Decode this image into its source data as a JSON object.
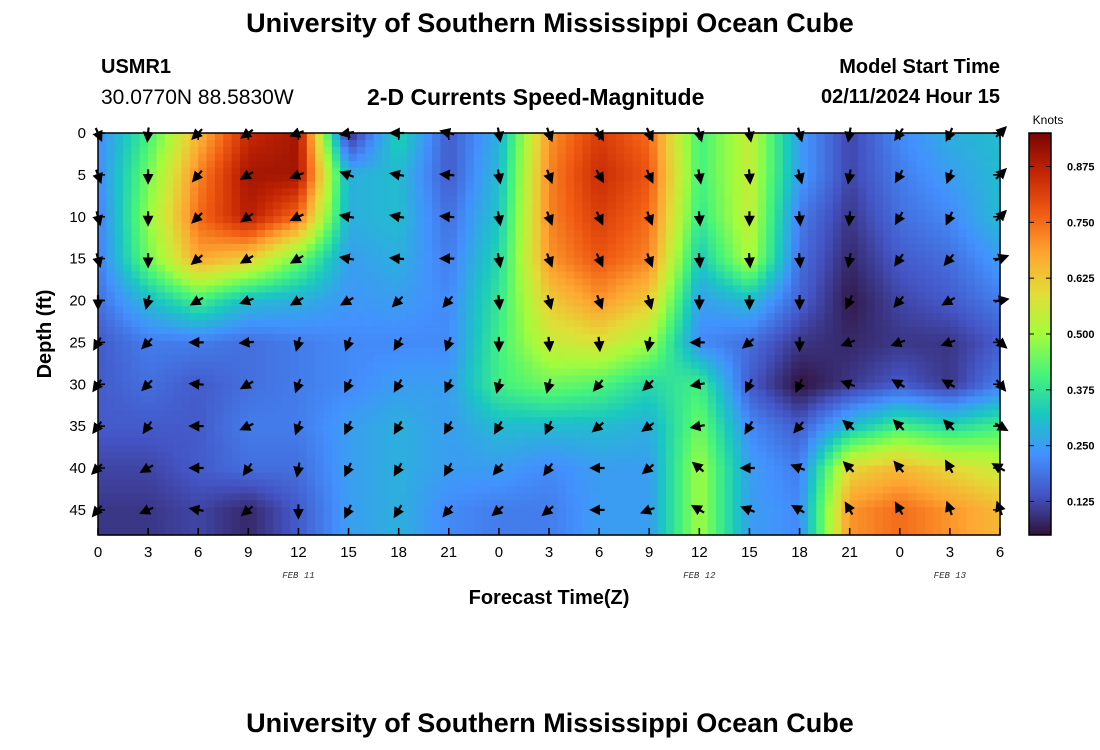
{
  "header": {
    "title": "University of Southern Mississippi Ocean Cube",
    "station_id": "USMR1",
    "coords": "30.0770N  88.5830W",
    "subtitle": "2-D Currents Speed-Magnitude",
    "model_start_label": "Model Start Time",
    "model_start_value": "02/11/2024 Hour 15"
  },
  "footer": {
    "title": "University of Southern Mississippi Ocean Cube"
  },
  "chart_data": {
    "type": "heatmap",
    "xlabel": "Forecast Time(Z)",
    "ylabel": "Depth (ft)",
    "x_tick_labels": [
      "0",
      "3",
      "6",
      "9",
      "12",
      "15",
      "18",
      "21",
      "0",
      "3",
      "6",
      "9",
      "12",
      "15",
      "18",
      "21",
      "0",
      "3",
      "6"
    ],
    "date_labels": [
      {
        "text": "FEB 11",
        "tick_index": 4
      },
      {
        "text": "FEB 12",
        "tick_index": 12
      },
      {
        "text": "FEB 13",
        "tick_index": 17
      }
    ],
    "y_ticks": [
      0,
      5,
      10,
      15,
      20,
      25,
      30,
      35,
      40,
      45
    ],
    "ylim": [
      0,
      48
    ],
    "colorbar": {
      "unit": "Knots",
      "ticks": [
        "0.875",
        "0.750",
        "0.625",
        "0.500",
        "0.375",
        "0.250",
        "0.125"
      ],
      "range": [
        0.05,
        0.95
      ]
    },
    "depths": [
      0,
      5,
      10,
      15,
      20,
      25,
      30,
      35,
      40,
      45
    ],
    "speed": [
      [
        0.22,
        0.4,
        0.65,
        0.85,
        0.9,
        0.08,
        0.35,
        0.15,
        0.28,
        0.7,
        0.82,
        0.75,
        0.4,
        0.55,
        0.25,
        0.12,
        0.22,
        0.28,
        0.3
      ],
      [
        0.22,
        0.45,
        0.72,
        0.9,
        0.9,
        0.28,
        0.3,
        0.15,
        0.3,
        0.72,
        0.85,
        0.78,
        0.4,
        0.55,
        0.25,
        0.12,
        0.2,
        0.25,
        0.3
      ],
      [
        0.2,
        0.48,
        0.75,
        0.88,
        0.75,
        0.28,
        0.3,
        0.18,
        0.32,
        0.72,
        0.82,
        0.75,
        0.38,
        0.55,
        0.2,
        0.1,
        0.18,
        0.22,
        0.3
      ],
      [
        0.2,
        0.45,
        0.68,
        0.62,
        0.45,
        0.25,
        0.28,
        0.2,
        0.35,
        0.7,
        0.78,
        0.72,
        0.32,
        0.52,
        0.18,
        0.08,
        0.15,
        0.18,
        0.25
      ],
      [
        0.18,
        0.3,
        0.4,
        0.3,
        0.28,
        0.24,
        0.25,
        0.22,
        0.38,
        0.62,
        0.7,
        0.62,
        0.25,
        0.3,
        0.16,
        0.06,
        0.12,
        0.15,
        0.2
      ],
      [
        0.15,
        0.2,
        0.2,
        0.18,
        0.2,
        0.22,
        0.22,
        0.22,
        0.4,
        0.55,
        0.58,
        0.5,
        0.22,
        0.18,
        0.1,
        0.08,
        0.1,
        0.1,
        0.15
      ],
      [
        0.15,
        0.18,
        0.15,
        0.18,
        0.2,
        0.22,
        0.25,
        0.25,
        0.4,
        0.45,
        0.42,
        0.35,
        0.4,
        0.15,
        0.05,
        0.1,
        0.15,
        0.1,
        0.2
      ],
      [
        0.15,
        0.15,
        0.15,
        0.2,
        0.2,
        0.25,
        0.28,
        0.25,
        0.3,
        0.3,
        0.3,
        0.28,
        0.45,
        0.22,
        0.15,
        0.3,
        0.4,
        0.35,
        0.4
      ],
      [
        0.12,
        0.12,
        0.15,
        0.18,
        0.18,
        0.25,
        0.28,
        0.25,
        0.25,
        0.22,
        0.25,
        0.25,
        0.5,
        0.25,
        0.2,
        0.6,
        0.65,
        0.6,
        0.55
      ],
      [
        0.1,
        0.1,
        0.12,
        0.08,
        0.15,
        0.25,
        0.28,
        0.22,
        0.2,
        0.2,
        0.25,
        0.25,
        0.5,
        0.25,
        0.22,
        0.7,
        0.75,
        0.7,
        0.65
      ]
    ],
    "direction_deg": [
      [
        155,
        185,
        225,
        235,
        250,
        260,
        270,
        285,
        170,
        160,
        150,
        155,
        165,
        170,
        165,
        190,
        215,
        205,
        45
      ],
      [
        160,
        180,
        220,
        240,
        250,
        290,
        280,
        275,
        170,
        160,
        150,
        155,
        170,
        175,
        165,
        190,
        210,
        200,
        45
      ],
      [
        165,
        180,
        225,
        235,
        245,
        280,
        280,
        275,
        170,
        160,
        155,
        160,
        175,
        180,
        175,
        185,
        210,
        205,
        45
      ],
      [
        165,
        180,
        230,
        240,
        240,
        280,
        275,
        270,
        170,
        160,
        155,
        160,
        175,
        175,
        175,
        190,
        215,
        220,
        70
      ],
      [
        180,
        195,
        240,
        250,
        240,
        240,
        225,
        220,
        175,
        165,
        160,
        165,
        180,
        180,
        180,
        205,
        220,
        240,
        80
      ],
      [
        210,
        225,
        270,
        265,
        195,
        200,
        210,
        200,
        180,
        175,
        175,
        190,
        270,
        230,
        180,
        250,
        250,
        250,
        130
      ],
      [
        215,
        225,
        275,
        240,
        200,
        205,
        210,
        205,
        195,
        195,
        220,
        225,
        260,
        205,
        205,
        290,
        300,
        300,
        140
      ],
      [
        215,
        215,
        270,
        245,
        200,
        205,
        210,
        210,
        210,
        205,
        230,
        235,
        260,
        210,
        220,
        310,
        315,
        315,
        120
      ],
      [
        225,
        240,
        270,
        215,
        190,
        205,
        210,
        210,
        220,
        215,
        270,
        230,
        310,
        270,
        290,
        315,
        320,
        330,
        300
      ],
      [
        220,
        245,
        280,
        230,
        180,
        205,
        210,
        220,
        230,
        230,
        270,
        250,
        300,
        290,
        300,
        330,
        330,
        340,
        340
      ]
    ]
  }
}
